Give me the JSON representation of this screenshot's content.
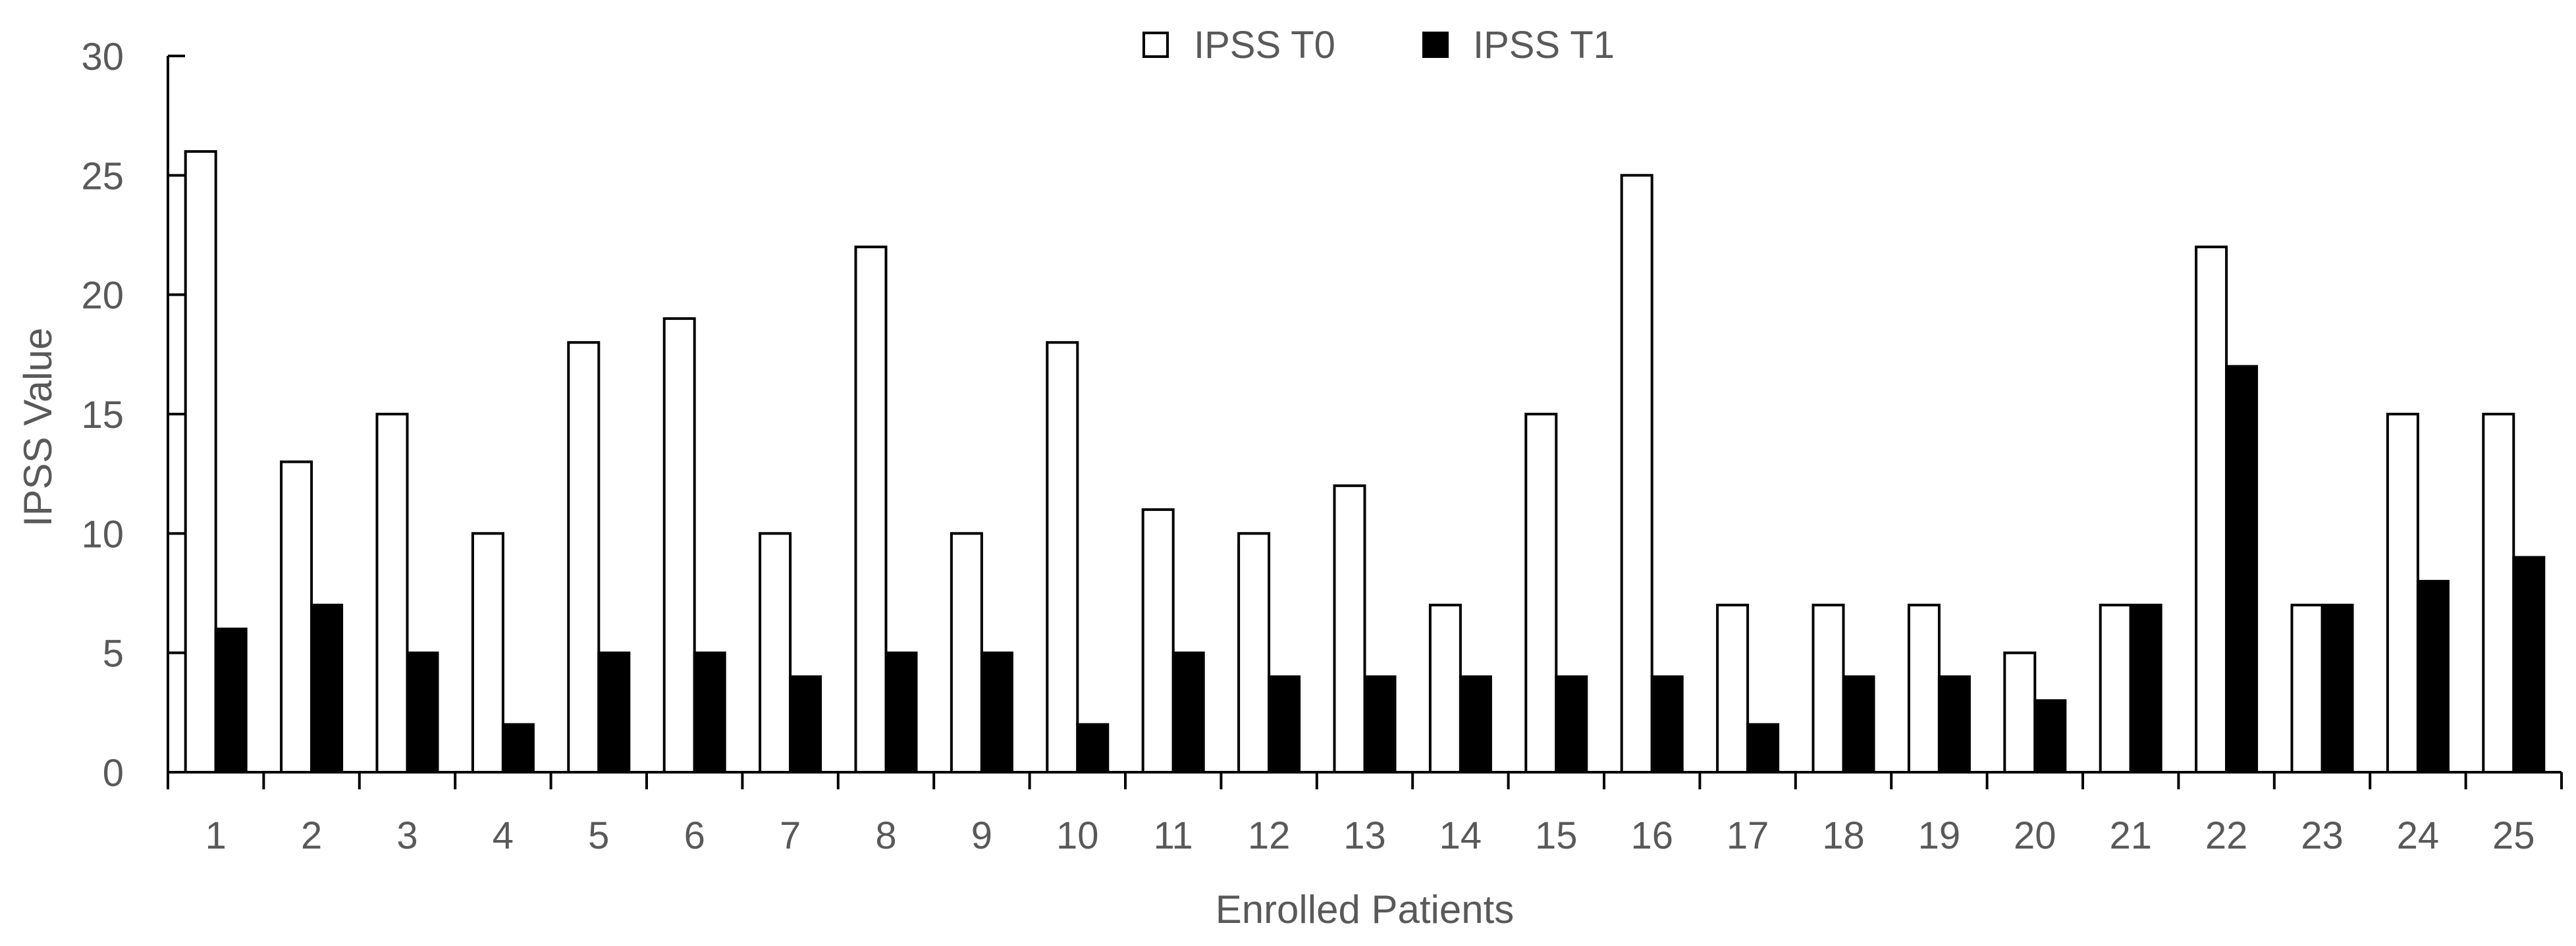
{
  "chart_data": {
    "type": "bar",
    "xlabel": "Enrolled Patients",
    "ylabel": "IPSS Value",
    "ylim": [
      0,
      30
    ],
    "yticks": [
      0,
      5,
      10,
      15,
      20,
      25,
      30
    ],
    "grid": false,
    "legend_position": "top-center",
    "categories": [
      "1",
      "2",
      "3",
      "4",
      "5",
      "6",
      "7",
      "8",
      "9",
      "10",
      "11",
      "12",
      "13",
      "14",
      "15",
      "16",
      "17",
      "18",
      "19",
      "20",
      "21",
      "22",
      "23",
      "24",
      "25"
    ],
    "series": [
      {
        "name": "IPSS T0",
        "fill": "#ffffff",
        "stroke": "#000000",
        "values": [
          26,
          13,
          15,
          10,
          18,
          19,
          10,
          22,
          10,
          18,
          11,
          10,
          12,
          7,
          15,
          25,
          7,
          7,
          7,
          5,
          7,
          22,
          7,
          15,
          15
        ]
      },
      {
        "name": "IPSS T1",
        "fill": "#000000",
        "stroke": "#000000",
        "values": [
          6,
          7,
          5,
          2,
          5,
          5,
          4,
          5,
          5,
          2,
          5,
          4,
          4,
          4,
          4,
          4,
          2,
          4,
          4,
          3,
          7,
          17,
          7,
          8,
          9
        ]
      }
    ],
    "colors": {
      "axis": "#000000",
      "text": "#595959"
    }
  }
}
